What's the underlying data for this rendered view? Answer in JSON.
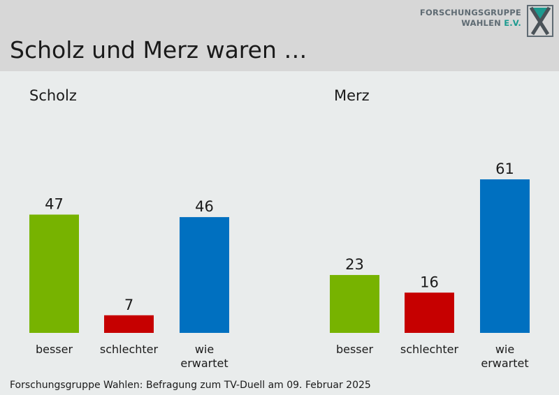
{
  "header": {
    "title": "Scholz und Merz waren …",
    "logo": {
      "line1": "FORSCHUNGSGRUPPE",
      "line2_main": "WAHLEN",
      "line2_accent": "E.V."
    }
  },
  "footer": {
    "source": "Forschungsgruppe Wahlen: Befragung zum TV-Duell am 09. Februar 2025"
  },
  "colors": {
    "besser": "#77b300",
    "schlechter": "#c60000",
    "wie_erwartet": "#0070c0"
  },
  "chart_data": [
    {
      "type": "bar",
      "title": "Scholz",
      "categories": [
        "besser",
        "schlechter",
        "wie erwartet"
      ],
      "values": [
        47,
        7,
        46
      ],
      "ylim": [
        0,
        61
      ]
    },
    {
      "type": "bar",
      "title": "Merz",
      "categories": [
        "besser",
        "schlechter",
        "wie erwartet"
      ],
      "values": [
        23,
        16,
        61
      ],
      "ylim": [
        0,
        61
      ]
    }
  ]
}
